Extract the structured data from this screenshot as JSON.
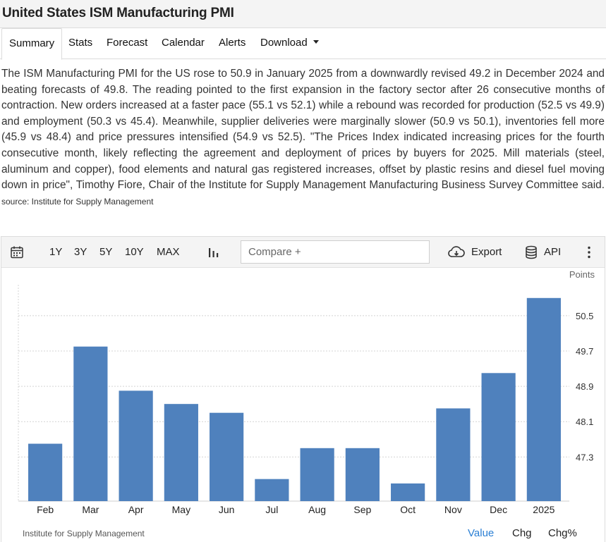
{
  "header": {
    "title": "United States ISM Manufacturing PMI"
  },
  "tabs": [
    {
      "label": "Summary"
    },
    {
      "label": "Stats"
    },
    {
      "label": "Forecast"
    },
    {
      "label": "Calendar"
    },
    {
      "label": "Alerts"
    },
    {
      "label": "Download"
    }
  ],
  "summary": {
    "text": "The ISM Manufacturing PMI for the US rose to 50.9 in January 2025 from a downwardly revised 49.2 in December 2024 and beating forecasts of 49.8. The reading pointed to the first expansion in the factory sector after 26 consecutive months of contraction. New orders increased at a faster pace (55.1 vs 52.1) while a rebound was recorded for production (52.5 vs 49.9) and employment (50.3 vs 45.4). Meanwhile, supplier deliveries were marginally slower (50.9 vs 50.1), inventories fell more (45.9 vs 48.4) and price pressures intensified (54.9 vs 52.5). \"The Prices Index indicated increasing prices for the fourth consecutive month, likely reflecting the agreement and deployment of prices by buyers for 2025. Mill materials (steel, aluminum and copper), food elements and natural gas registered increases, offset by plastic resins and diesel fuel moving down in price\", Timothy Fiore, Chair of the Institute for Supply Management Manufacturing Business Survey Committee said.",
    "source": "source: Institute for Supply Management"
  },
  "toolbar": {
    "calendar_icon": "calendar-icon",
    "ranges": [
      "1Y",
      "3Y",
      "5Y",
      "10Y",
      "MAX"
    ],
    "chart_type_icon": "bar-chart-icon",
    "compare_placeholder": "Compare +",
    "export_label": "Export",
    "export_icon": "cloud-download-icon",
    "api_label": "API",
    "api_icon": "database-icon",
    "more_icon": "more-vertical-icon"
  },
  "chart_data": {
    "type": "bar",
    "ylabel": "Points",
    "categories": [
      "Feb",
      "Mar",
      "Apr",
      "May",
      "Jun",
      "Jul",
      "Aug",
      "Sep",
      "Oct",
      "Nov",
      "Dec",
      "2025"
    ],
    "values": [
      47.6,
      49.8,
      48.8,
      48.5,
      48.3,
      46.8,
      47.5,
      47.5,
      46.7,
      48.4,
      49.2,
      50.9
    ],
    "yticks": [
      "47.3",
      "48.1",
      "48.9",
      "49.7",
      "50.5"
    ],
    "ylim": [
      46.3,
      51.2
    ],
    "bar_color": "#4f81bd",
    "grid": true
  },
  "footer": {
    "source": "Institute for Supply Management",
    "tabs": [
      "Value",
      "Chg",
      "Chg%"
    ],
    "active_color": "#2a7fd4"
  }
}
